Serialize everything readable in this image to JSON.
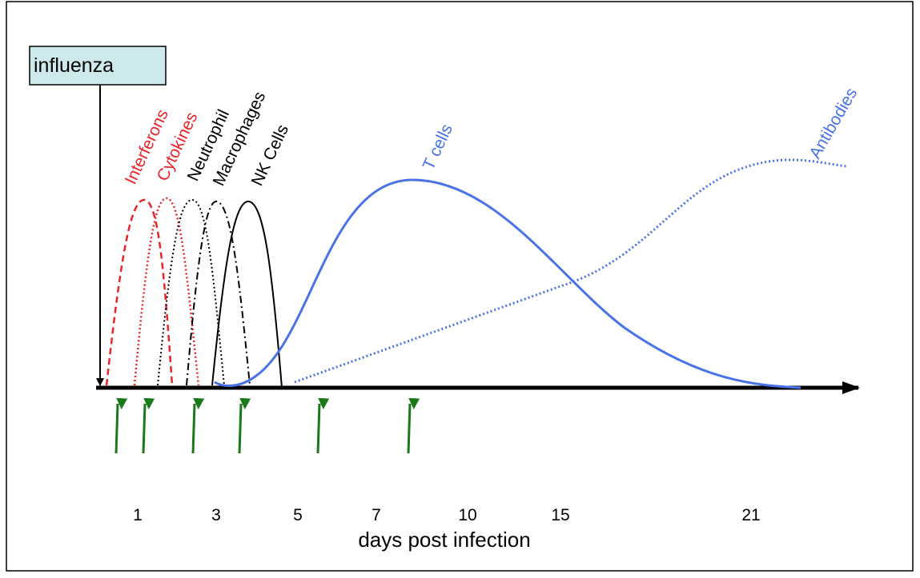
{
  "trigger": "influenza",
  "curve_labels": {
    "interferons": "Interferons",
    "cytokines": "Cytokines",
    "neutrophil": "Neutrophil",
    "macrophages": "Macrophages",
    "nk_cells": "NK Cells",
    "t_cells": "T cells",
    "antibodies": "Antibodies"
  },
  "x_labels": [
    "1",
    "3",
    "5",
    "7",
    "10",
    "15",
    "21"
  ],
  "x_axis_label": "days post infection"
}
